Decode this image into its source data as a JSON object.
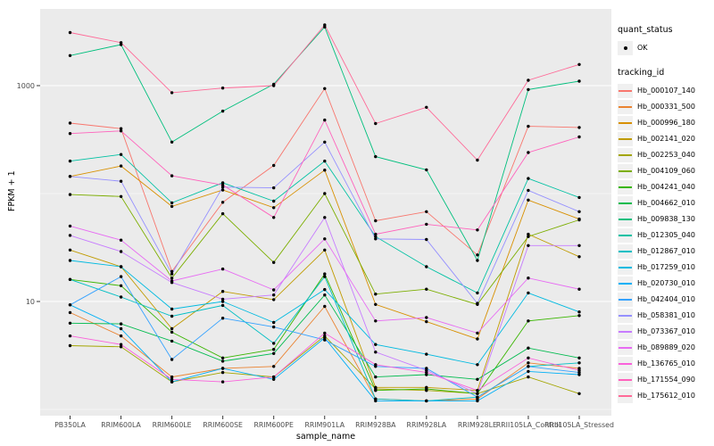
{
  "chart_data": {
    "type": "line",
    "xlabel": "sample_name",
    "ylabel": "FPKM + 1",
    "y_scale": "log10",
    "ylim": [
      1,
      5000
    ],
    "y_ticks": [
      10,
      1000
    ],
    "y_minor_gridlines": [
      1,
      100
    ],
    "grid": "on",
    "legend_position": "right",
    "panel_bg": "#EBEBEB",
    "gridline_color": "#FFFFFF",
    "point_color": "#000000",
    "categories": [
      "PB350LA",
      "RRIM600LA",
      "RRIM600LE",
      "RRIM600SE",
      "RRIM600PE",
      "RRIM901LA",
      "RRIM928BA",
      "RRIM928LA",
      "RRIM928LE",
      "RRII105LA_Control",
      "RRII105LA_Stressed"
    ],
    "series": [
      {
        "name": "Hb_000107_140",
        "color": "#F8766D",
        "values": [
          450,
          400,
          19,
          83,
          182,
          940,
          56,
          68,
          27,
          420,
          410
        ]
      },
      {
        "name": "Hb_000331_500",
        "color": "#EA8331",
        "values": [
          7.9,
          4.8,
          2.0,
          2.4,
          2.5,
          9.0,
          1.25,
          1.2,
          1.25,
          2.7,
          2.4
        ]
      },
      {
        "name": "Hb_000996_180",
        "color": "#D89000",
        "values": [
          144,
          180,
          76,
          108,
          74,
          165,
          9.4,
          6.5,
          4.5,
          87,
          58
        ]
      },
      {
        "name": "Hb_002141_020",
        "color": "#C09B00",
        "values": [
          30,
          21,
          5.6,
          12.4,
          10.4,
          30,
          1.6,
          1.6,
          1.5,
          42,
          26
        ]
      },
      {
        "name": "Hb_002253_040",
        "color": "#A3A500",
        "values": [
          3.9,
          3.8,
          1.8,
          2.2,
          2.0,
          4.8,
          1.55,
          1.5,
          1.4,
          2.0,
          1.4
        ]
      },
      {
        "name": "Hb_004109_060",
        "color": "#7CAE00",
        "values": [
          98,
          94,
          16.5,
          65,
          23,
          100,
          11.7,
          13,
          9.4,
          40,
          57
        ]
      },
      {
        "name": "Hb_004241_040",
        "color": "#39B600",
        "values": [
          16,
          14,
          5.2,
          3.0,
          3.6,
          18,
          1.5,
          1.55,
          1.4,
          6.6,
          7.4
        ]
      },
      {
        "name": "Hb_004662_010",
        "color": "#00BB4E",
        "values": [
          6.3,
          6.2,
          4.3,
          2.8,
          3.3,
          11.5,
          2.0,
          2.1,
          1.9,
          3.7,
          3.0
        ]
      },
      {
        "name": "Hb_009838_130",
        "color": "#00BF7D",
        "values": [
          1900,
          2400,
          300,
          580,
          1030,
          3500,
          220,
          166,
          24,
          920,
          1100
        ]
      },
      {
        "name": "Hb_012305_040",
        "color": "#00C1A3",
        "values": [
          200,
          230,
          82,
          126,
          85,
          200,
          40,
          21,
          12,
          138,
          92
        ]
      },
      {
        "name": "Hb_012867_010",
        "color": "#00BFC4",
        "values": [
          16,
          11,
          7.3,
          9.2,
          4.1,
          17,
          1.25,
          1.2,
          1.3,
          2.5,
          2.7
        ]
      },
      {
        "name": "Hb_017259_010",
        "color": "#00BAE0",
        "values": [
          24,
          21,
          8.5,
          10,
          6.4,
          12.9,
          4.0,
          3.25,
          2.6,
          12,
          8.0
        ]
      },
      {
        "name": "Hb_020730_010",
        "color": "#00B0F6",
        "values": [
          9.3,
          5.6,
          1.8,
          2.4,
          1.9,
          4.6,
          1.2,
          1.2,
          1.2,
          2.25,
          2.1
        ]
      },
      {
        "name": "Hb_042404_010",
        "color": "#35A2FF",
        "values": [
          9.3,
          17,
          2.9,
          7.0,
          5.8,
          4.4,
          2.5,
          2.4,
          1.3,
          2.5,
          2.2
        ]
      },
      {
        "name": "Hb_058381_010",
        "color": "#9590FF",
        "values": [
          144,
          130,
          18,
          115,
          113,
          300,
          38,
          37.5,
          9.6,
          107,
          68
        ]
      },
      {
        "name": "Hb_073367_010",
        "color": "#C77CFF",
        "values": [
          41,
          29,
          15,
          10.5,
          11.5,
          60,
          3.4,
          2.3,
          1.4,
          33,
          33
        ]
      },
      {
        "name": "Hb_089889_020",
        "color": "#E76BF3",
        "values": [
          50,
          37,
          15.5,
          20,
          12.8,
          38,
          6.6,
          7.1,
          5.1,
          16.5,
          13
        ]
      },
      {
        "name": "Hb_136765_010",
        "color": "#FA62DB",
        "values": [
          4.8,
          4.0,
          1.9,
          1.8,
          2.0,
          5.1,
          2.6,
          2.2,
          1.5,
          3.0,
          2.3
        ]
      },
      {
        "name": "Hb_171554_090",
        "color": "#FF62BC",
        "values": [
          360,
          380,
          146,
          120,
          60,
          480,
          42,
          52,
          46,
          240,
          335
        ]
      },
      {
        "name": "Hb_175612_010",
        "color": "#FF6A98",
        "values": [
          3100,
          2500,
          860,
          950,
          1000,
          3650,
          445,
          630,
          204,
          1120,
          1570
        ]
      }
    ]
  },
  "axes": {
    "x_title": "sample_name",
    "y_title": "FPKM + 1"
  },
  "legend": {
    "quant_status_title": "quant_status",
    "quant_status_items": [
      "OK"
    ],
    "tracking_title": "tracking_id"
  }
}
